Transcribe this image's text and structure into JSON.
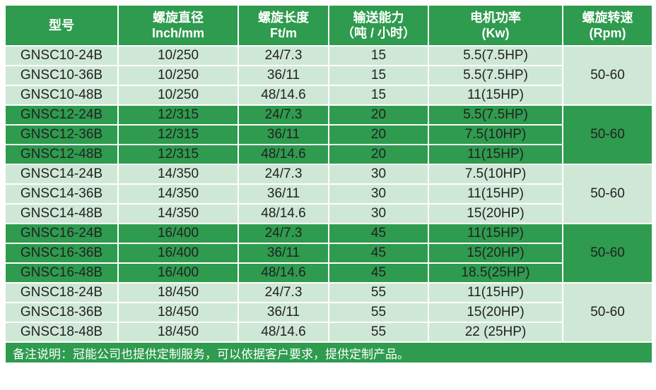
{
  "headers": [
    {
      "l1": "型号",
      "l2": ""
    },
    {
      "l1": "螺旋直径",
      "l2": "Inch/mm"
    },
    {
      "l1": "螺旋长度",
      "l2": "Ft/m"
    },
    {
      "l1": "输送能力",
      "l2": "（吨 / 小时）"
    },
    {
      "l1": "电机功率",
      "l2": "(Kw)"
    },
    {
      "l1": "螺旋转速",
      "l2": "(Rpm)"
    }
  ],
  "groups": [
    {
      "rpm": "50-60",
      "rows": [
        [
          "GNSC10-24B",
          "10/250",
          "24/7.3",
          "15",
          "5.5(7.5HP)"
        ],
        [
          "GNSC10-36B",
          "10/250",
          "36/11",
          "15",
          "5.5(7.5HP)"
        ],
        [
          "GNSC10-48B",
          "10/250",
          "48/14.6",
          "15",
          "11(15HP)"
        ]
      ]
    },
    {
      "rpm": "50-60",
      "rows": [
        [
          "GNSC12-24B",
          "12/315",
          "24/7.3",
          "20",
          "5.5(7.5HP)"
        ],
        [
          "GNSC12-36B",
          "12/315",
          "36/11",
          "20",
          "7.5(10HP)"
        ],
        [
          "GNSC12-48B",
          "12/315",
          "48/14.6",
          "20",
          "11(15HP)"
        ]
      ]
    },
    {
      "rpm": "50-60",
      "rows": [
        [
          "GNSC14-24B",
          "14/350",
          "24/7.3",
          "30",
          "7.5(10HP)"
        ],
        [
          "GNSC14-36B",
          "14/350",
          "36/11",
          "30",
          "11(15HP)"
        ],
        [
          "GNSC14-48B",
          "14/350",
          "48/14.6",
          "30",
          "15(20HP)"
        ]
      ]
    },
    {
      "rpm": "50-60",
      "rows": [
        [
          "GNSC16-24B",
          "16/400",
          "24/7.3",
          "45",
          "11(15HP)"
        ],
        [
          "GNSC16-36B",
          "16/400",
          "36/11",
          "45",
          "15(20HP)"
        ],
        [
          "GNSC16-48B",
          "16/400",
          "48/14.6",
          "45",
          "18.5(25HP)"
        ]
      ]
    },
    {
      "rpm": "50-60",
      "rows": [
        [
          "GNSC18-24B",
          "18/450",
          "24/7.3",
          "55",
          "11(15HP)"
        ],
        [
          "GNSC18-36B",
          "18/450",
          "36/11",
          "55",
          "15(20HP)"
        ],
        [
          "GNSC18-48B",
          "18/450",
          "48/14.6",
          "55",
          "22 (25HP)"
        ]
      ]
    }
  ],
  "footer": "备注说明：冠能公司也提供定制服务，可以依据客户要求，提供定制产品。",
  "colors": {
    "green": "#2e9b4e",
    "light": "#cfe8d6"
  }
}
